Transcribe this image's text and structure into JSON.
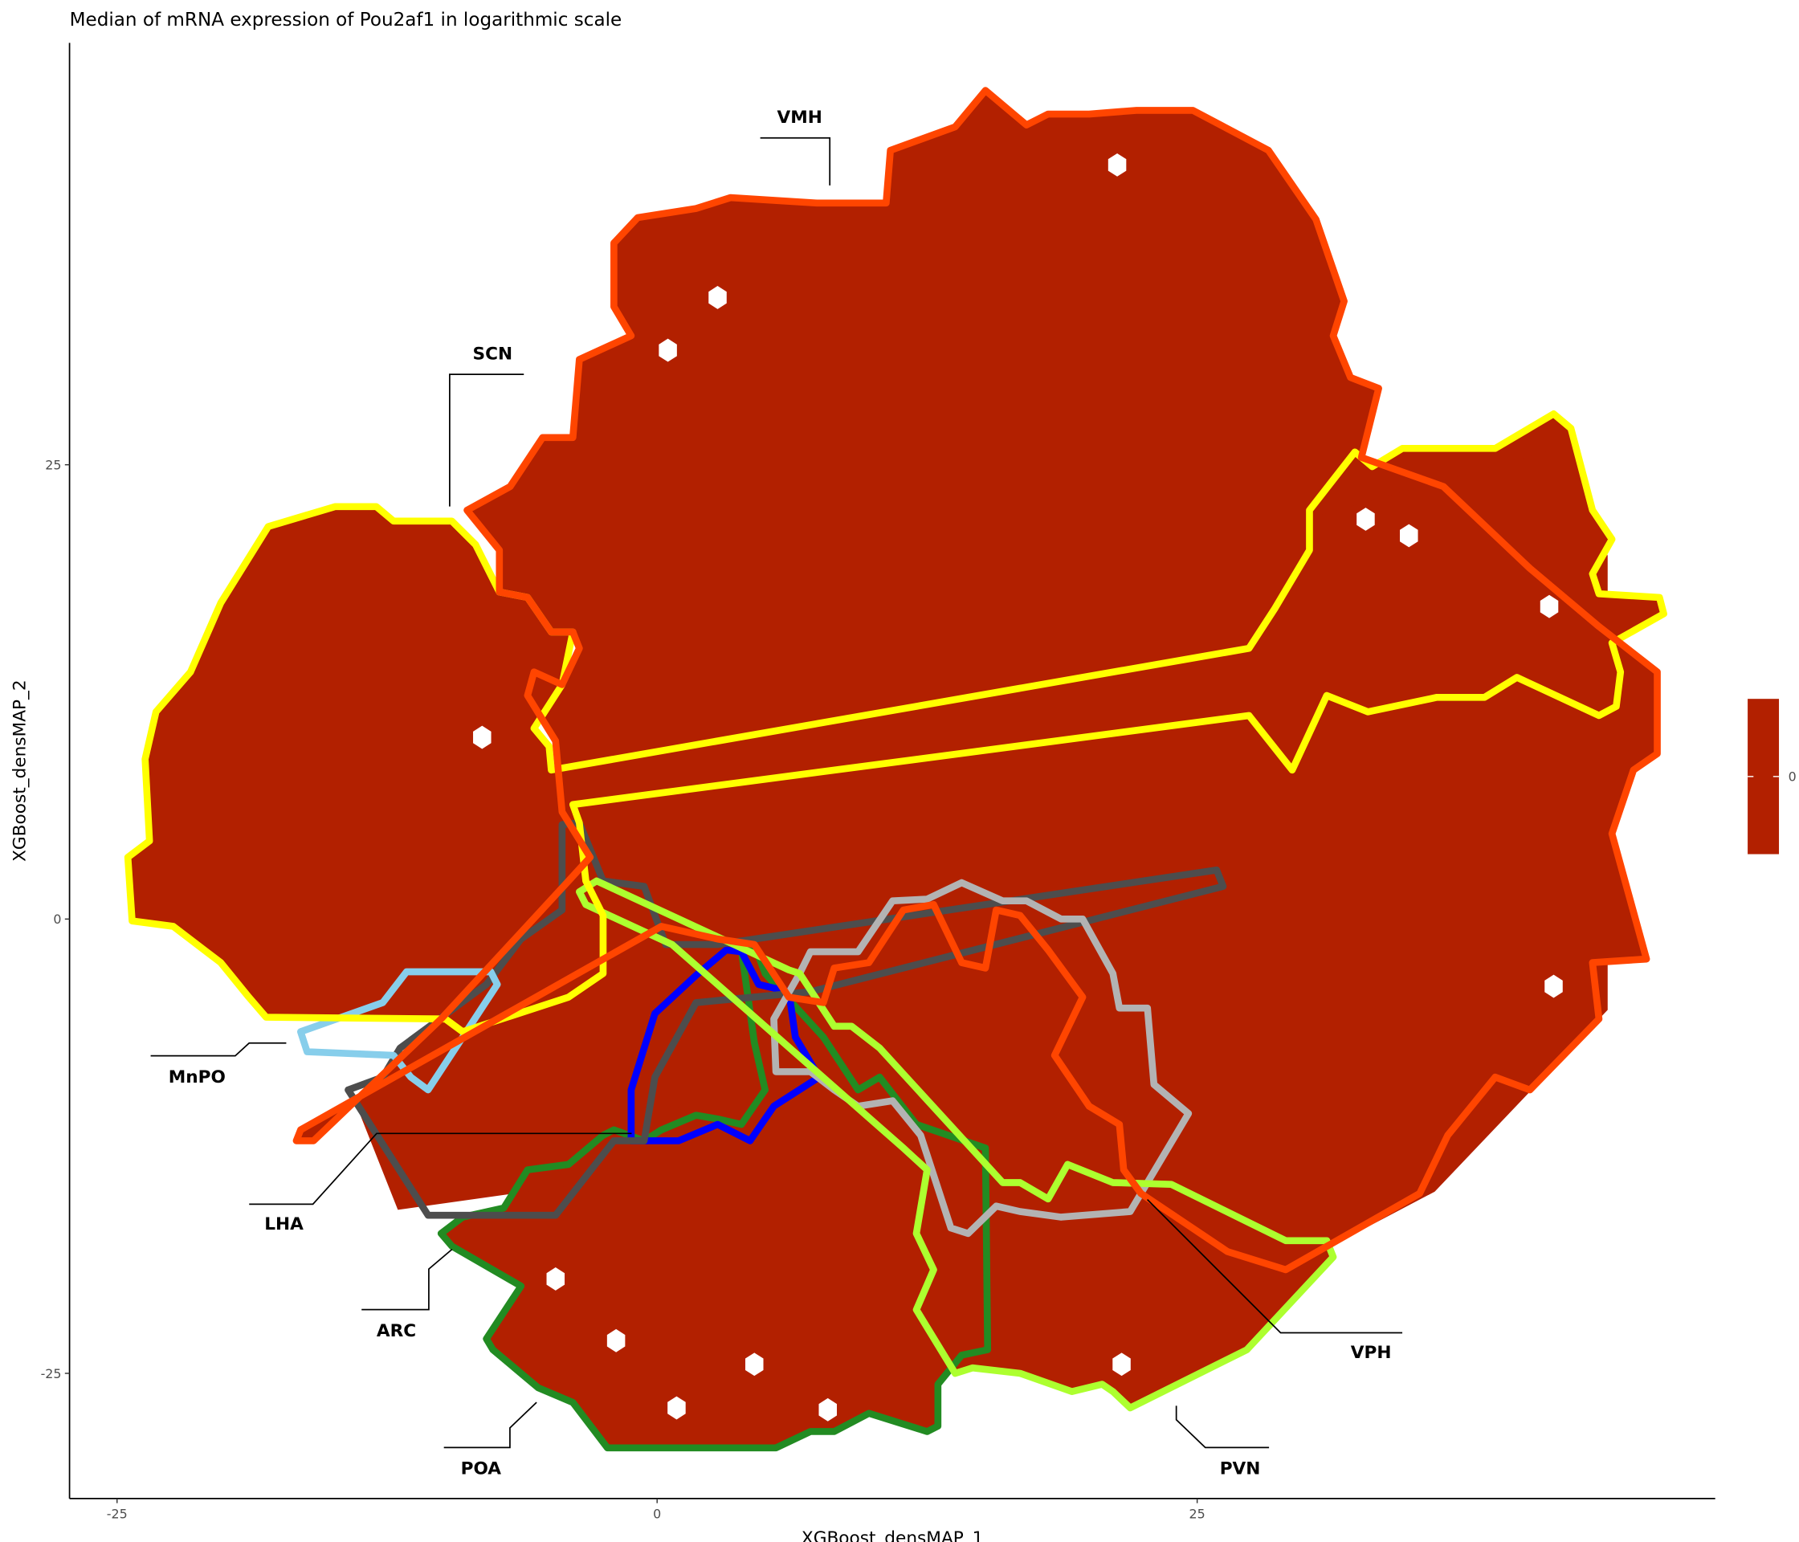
{
  "chart_data": {
    "type": "heatmap",
    "subtype": "hexbin with region contour overlays",
    "title": "Median of mRNA expression of Pou2af1 in logarithmic scale",
    "xlabel": "XGBoost_densMAP_1",
    "ylabel": "XGBoost_densMAP_2",
    "x_ticks": [
      -25,
      0,
      25
    ],
    "y_ticks": [
      -25,
      0,
      25
    ],
    "x_tick_labels": [
      "-25",
      "0",
      "25"
    ],
    "y_tick_labels": [
      "-25",
      "0",
      "25"
    ],
    "xlim": [
      -27,
      49
    ],
    "ylim": [
      -32,
      48
    ],
    "grid": false,
    "fill_color": "#B22000",
    "colorbar": {
      "ticks": [
        "0"
      ],
      "values": [
        0
      ],
      "color": "#B22000",
      "placement": "right"
    },
    "regions": [
      {
        "name": "VMH",
        "color": "#FF4500",
        "outline": [
          [
            -8.8,
            22.5
          ],
          [
            -6.8,
            23.8
          ],
          [
            -5.3,
            26.5
          ],
          [
            -3.9,
            26.5
          ],
          [
            -3.6,
            30.8
          ],
          [
            -1.2,
            32.1
          ],
          [
            -2.0,
            33.7
          ],
          [
            -2.0,
            37.2
          ],
          [
            -0.9,
            38.6
          ],
          [
            1.8,
            39.1
          ],
          [
            3.4,
            39.7
          ],
          [
            7.4,
            39.4
          ],
          [
            10.6,
            39.4
          ],
          [
            10.8,
            42.3
          ],
          [
            13.8,
            43.6
          ],
          [
            15.2,
            45.6
          ],
          [
            17.1,
            43.7
          ],
          [
            18.1,
            44.3
          ],
          [
            20.0,
            44.3
          ],
          [
            22.2,
            44.5
          ],
          [
            24.8,
            44.5
          ],
          [
            28.3,
            42.3
          ],
          [
            30.5,
            38.5
          ],
          [
            31.8,
            34.0
          ],
          [
            31.3,
            32.1
          ],
          [
            32.1,
            29.8
          ],
          [
            33.4,
            29.2
          ],
          [
            32.6,
            25.4
          ],
          [
            36.4,
            23.8
          ],
          [
            40.4,
            19.3
          ],
          [
            43.6,
            16.1
          ],
          [
            46.3,
            13.6
          ],
          [
            46.3,
            9.1
          ],
          [
            45.2,
            8.2
          ],
          [
            44.2,
            4.7
          ],
          [
            45.8,
            -2.2
          ],
          [
            43.3,
            -2.4
          ],
          [
            43.6,
            -5.5
          ],
          [
            40.4,
            -9.4
          ],
          [
            38.8,
            -8.7
          ],
          [
            36.6,
            -11.9
          ],
          [
            35.3,
            -15.1
          ],
          [
            29.1,
            -19.3
          ],
          [
            26.4,
            -18.3
          ],
          [
            22.4,
            -15.1
          ],
          [
            21.6,
            -13.8
          ],
          [
            21.4,
            -11.3
          ],
          [
            20.0,
            -10.3
          ],
          [
            18.4,
            -7.5
          ],
          [
            19.7,
            -4.3
          ],
          [
            18.1,
            -1.7
          ],
          [
            16.8,
            0.2
          ],
          [
            15.7,
            0.5
          ],
          [
            15.2,
            -2.7
          ],
          [
            14.1,
            -2.4
          ],
          [
            12.8,
            0.8
          ],
          [
            11.4,
            0.5
          ],
          [
            9.8,
            -2.4
          ],
          [
            8.2,
            -2.7
          ],
          [
            7.7,
            -4.6
          ],
          [
            6.1,
            -4.3
          ],
          [
            4.5,
            -1.4
          ],
          [
            2.8,
            -1.1
          ],
          [
            0.2,
            -0.4
          ],
          [
            -16.5,
            -11.6
          ],
          [
            -16.7,
            -12.2
          ],
          [
            -15.9,
            -12.2
          ],
          [
            -10.0,
            -5.5
          ],
          [
            -4.1,
            2.1
          ],
          [
            -3.1,
            3.4
          ],
          [
            -4.4,
            5.9
          ],
          [
            -4.7,
            9.8
          ],
          [
            -6.0,
            12.3
          ],
          [
            -5.7,
            13.6
          ],
          [
            -4.4,
            12.9
          ],
          [
            -3.6,
            14.9
          ],
          [
            -3.9,
            15.8
          ],
          [
            -4.9,
            15.8
          ],
          [
            -6.0,
            17.7
          ],
          [
            -7.3,
            18.0
          ],
          [
            -7.3,
            20.3
          ]
        ]
      },
      {
        "name": "SCN",
        "color": "#FFFF00",
        "outline": [
          [
            -18.0,
            21.6
          ],
          [
            -14.9,
            22.7
          ],
          [
            -13.0,
            22.7
          ],
          [
            -12.2,
            21.9
          ],
          [
            -9.5,
            21.9
          ],
          [
            -8.4,
            20.6
          ],
          [
            -7.3,
            18.0
          ],
          [
            -6.0,
            17.7
          ],
          [
            -4.9,
            15.8
          ],
          [
            -3.9,
            15.8
          ],
          [
            -4.4,
            12.9
          ],
          [
            -5.7,
            10.5
          ],
          [
            -5.0,
            9.5
          ],
          [
            -4.9,
            8.2
          ],
          [
            27.4,
            14.9
          ],
          [
            28.6,
            17.1
          ],
          [
            30.2,
            20.3
          ],
          [
            30.2,
            22.5
          ],
          [
            32.3,
            25.7
          ],
          [
            33.1,
            24.9
          ],
          [
            34.5,
            25.9
          ],
          [
            38.8,
            25.9
          ],
          [
            41.5,
            27.8
          ],
          [
            42.3,
            27.0
          ],
          [
            43.3,
            22.5
          ],
          [
            44.2,
            20.9
          ],
          [
            43.3,
            19.0
          ],
          [
            43.6,
            17.9
          ],
          [
            46.4,
            17.7
          ],
          [
            46.6,
            16.8
          ],
          [
            44.2,
            15.2
          ],
          [
            44.6,
            13.6
          ],
          [
            44.4,
            11.7
          ],
          [
            43.6,
            11.2
          ],
          [
            39.8,
            13.3
          ],
          [
            38.3,
            12.2
          ],
          [
            36.1,
            12.2
          ],
          [
            32.9,
            11.4
          ],
          [
            31.0,
            12.3
          ],
          [
            29.4,
            8.2
          ],
          [
            27.4,
            11.2
          ],
          [
            -3.9,
            6.3
          ],
          [
            -3.6,
            5.3
          ],
          [
            -3.3,
            2.1
          ],
          [
            -2.5,
            0.2
          ],
          [
            -2.5,
            -3.0
          ],
          [
            -4.1,
            -4.3
          ],
          [
            -9.0,
            -6.2
          ],
          [
            -9.8,
            -5.5
          ],
          [
            -18.1,
            -5.4
          ],
          [
            -18.9,
            -4.3
          ],
          [
            -20.2,
            -2.4
          ],
          [
            -22.4,
            -0.4
          ],
          [
            -24.3,
            -0.1
          ],
          [
            -24.5,
            3.4
          ],
          [
            -23.5,
            4.3
          ],
          [
            -23.7,
            8.8
          ],
          [
            -23.2,
            11.4
          ],
          [
            -21.6,
            13.6
          ],
          [
            -20.2,
            17.4
          ]
        ]
      },
      {
        "name": "MnPO",
        "color": "#87CEEB",
        "outline": [
          [
            -11.6,
            -2.9
          ],
          [
            -7.7,
            -2.9
          ],
          [
            -7.4,
            -3.6
          ],
          [
            -10.6,
            -9.4
          ],
          [
            -11.4,
            -8.7
          ],
          [
            -12.2,
            -7.5
          ],
          [
            -16.2,
            -7.3
          ],
          [
            -16.5,
            -6.2
          ],
          [
            -12.7,
            -4.6
          ]
        ]
      },
      {
        "name": "LHA",
        "color": "#4D4D4D",
        "outline": [
          [
            -4.4,
            5.2
          ],
          [
            -3.6,
            5.3
          ],
          [
            -2.5,
            2.1
          ],
          [
            -0.6,
            1.8
          ],
          [
            0.4,
            -1.4
          ],
          [
            2.8,
            -1.4
          ],
          [
            25.9,
            2.7
          ],
          [
            26.2,
            1.8
          ],
          [
            7.1,
            -4.0
          ],
          [
            1.8,
            -4.6
          ],
          [
            -0.1,
            -8.7
          ],
          [
            -0.6,
            -12.2
          ],
          [
            -2.0,
            -12.2
          ],
          [
            -4.7,
            -16.3
          ],
          [
            -10.6,
            -16.3
          ],
          [
            -14.3,
            -9.4
          ],
          [
            -12.7,
            -8.7
          ],
          [
            -11.9,
            -7.1
          ],
          [
            -7.9,
            -3.6
          ],
          [
            -6.3,
            -1.1
          ],
          [
            -4.4,
            0.5
          ]
        ]
      },
      {
        "name": "ARC",
        "color": "#0000FF",
        "outline": [
          [
            -0.1,
            -5.2
          ],
          [
            1.8,
            -3.1
          ],
          [
            3.2,
            -1.7
          ],
          [
            3.9,
            -1.8
          ],
          [
            4.7,
            -3.6
          ],
          [
            6.1,
            -4.0
          ],
          [
            6.4,
            -6.5
          ],
          [
            7.5,
            -8.7
          ],
          [
            5.4,
            -10.3
          ],
          [
            4.3,
            -12.2
          ],
          [
            2.8,
            -11.3
          ],
          [
            1.0,
            -12.2
          ],
          [
            -1.2,
            -12.2
          ],
          [
            -1.2,
            -9.4
          ]
        ]
      },
      {
        "name": "POA",
        "color": "#228B22",
        "outline": [
          [
            -10.0,
            -17.3
          ],
          [
            -9.0,
            -16.4
          ],
          [
            -7.1,
            -15.9
          ],
          [
            -6.0,
            -13.8
          ],
          [
            -4.1,
            -13.5
          ],
          [
            -2.5,
            -11.9
          ],
          [
            -2.0,
            -11.6
          ],
          [
            -0.6,
            -12.2
          ],
          [
            0.2,
            -11.6
          ],
          [
            1.8,
            -10.8
          ],
          [
            2.8,
            -11.0
          ],
          [
            3.9,
            -11.3
          ],
          [
            5.0,
            -9.4
          ],
          [
            4.5,
            -6.8
          ],
          [
            3.9,
            -1.7
          ],
          [
            4.5,
            -1.4
          ],
          [
            5.0,
            -3.0
          ],
          [
            7.7,
            -6.5
          ],
          [
            9.3,
            -9.4
          ],
          [
            10.3,
            -8.7
          ],
          [
            12.0,
            -11.3
          ],
          [
            15.2,
            -12.6
          ],
          [
            15.3,
            -23.7
          ],
          [
            14.1,
            -24.0
          ],
          [
            13.0,
            -25.6
          ],
          [
            13.0,
            -27.9
          ],
          [
            12.5,
            -28.2
          ],
          [
            9.8,
            -27.2
          ],
          [
            8.2,
            -28.2
          ],
          [
            7.1,
            -28.2
          ],
          [
            5.5,
            -29.1
          ],
          [
            -2.3,
            -29.1
          ],
          [
            -3.9,
            -26.6
          ],
          [
            -5.5,
            -25.8
          ],
          [
            -7.6,
            -23.7
          ],
          [
            -7.9,
            -23.1
          ],
          [
            -6.3,
            -20.2
          ],
          [
            -9.5,
            -18.0
          ]
        ]
      },
      {
        "name": "VPH",
        "color": "#B3B3B3",
        "outline": [
          [
            7.1,
            -1.8
          ],
          [
            9.3,
            -1.8
          ],
          [
            10.9,
            1.0
          ],
          [
            12.5,
            1.1
          ],
          [
            14.1,
            2.0
          ],
          [
            16.0,
            1.0
          ],
          [
            17.1,
            1.0
          ],
          [
            18.7,
            0.0
          ],
          [
            19.7,
            0.0
          ],
          [
            21.1,
            -3.0
          ],
          [
            21.4,
            -4.9
          ],
          [
            22.7,
            -4.9
          ],
          [
            23.0,
            -9.1
          ],
          [
            24.6,
            -10.7
          ],
          [
            21.9,
            -16.1
          ],
          [
            18.7,
            -16.4
          ],
          [
            16.8,
            -16.1
          ],
          [
            15.7,
            -15.8
          ],
          [
            14.4,
            -17.3
          ],
          [
            13.6,
            -17.0
          ],
          [
            12.2,
            -11.9
          ],
          [
            10.9,
            -10.0
          ],
          [
            9.3,
            -10.3
          ],
          [
            8.2,
            -9.4
          ],
          [
            7.1,
            -8.4
          ],
          [
            5.5,
            -8.4
          ],
          [
            5.4,
            -5.5
          ],
          [
            6.6,
            -3.0
          ]
        ]
      },
      {
        "name": "PVN",
        "color": "#ADFF2F",
        "outline": [
          [
            -3.6,
            1.5
          ],
          [
            -2.8,
            2.1
          ],
          [
            6.1,
            -2.8
          ],
          [
            6.6,
            -3.0
          ],
          [
            8.2,
            -5.9
          ],
          [
            9.0,
            -5.9
          ],
          [
            10.3,
            -7.1
          ],
          [
            16.0,
            -14.5
          ],
          [
            16.8,
            -14.5
          ],
          [
            18.1,
            -15.4
          ],
          [
            19.0,
            -13.5
          ],
          [
            21.1,
            -14.5
          ],
          [
            23.8,
            -14.6
          ],
          [
            29.1,
            -17.7
          ],
          [
            31.0,
            -17.7
          ],
          [
            31.3,
            -18.6
          ],
          [
            27.3,
            -23.7
          ],
          [
            21.9,
            -26.9
          ],
          [
            21.1,
            -26.0
          ],
          [
            20.6,
            -25.6
          ],
          [
            19.2,
            -26.0
          ],
          [
            16.8,
            -25.0
          ],
          [
            14.6,
            -24.7
          ],
          [
            13.8,
            -25.0
          ],
          [
            12.0,
            -21.5
          ],
          [
            12.8,
            -19.3
          ],
          [
            12.0,
            -17.3
          ],
          [
            12.5,
            -13.8
          ],
          [
            11.4,
            -12.6
          ],
          [
            0.7,
            -1.4
          ],
          [
            -3.3,
            0.8
          ]
        ]
      }
    ]
  }
}
